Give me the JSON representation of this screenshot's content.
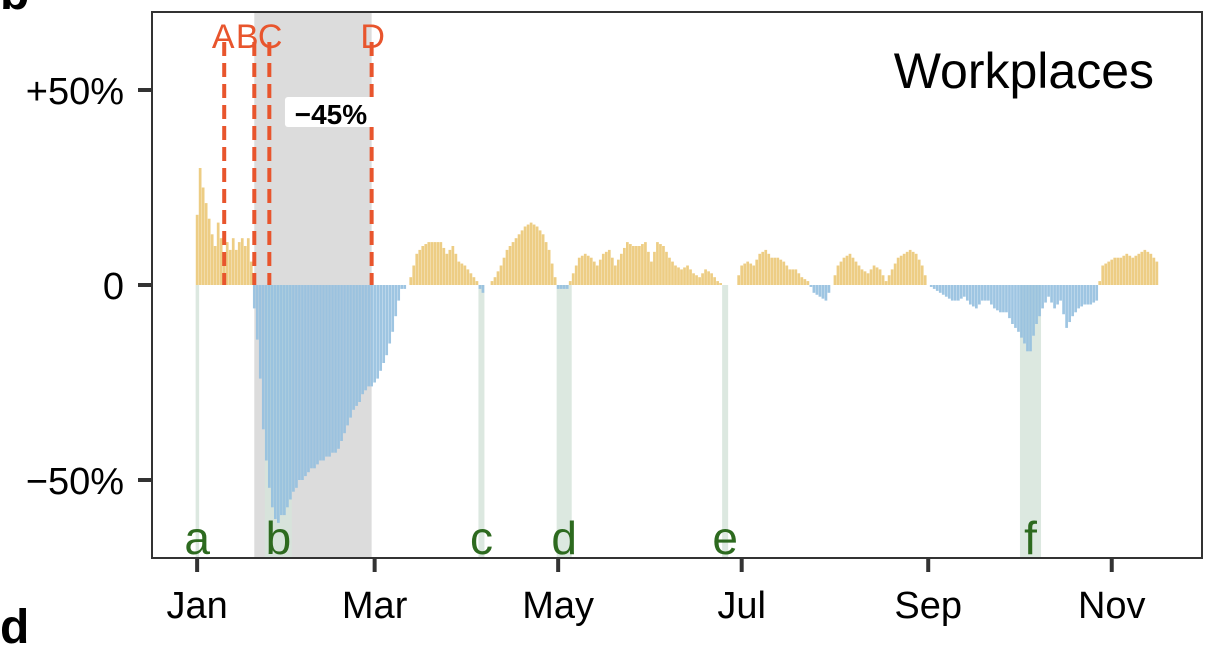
{
  "panel_labels": {
    "top": "b",
    "bottom": "d"
  },
  "chart_data": {
    "type": "bar",
    "title": "Workplaces",
    "xlabel": "",
    "ylabel": "",
    "x_tick_labels": [
      "Jan",
      "Mar",
      "May",
      "Jul",
      "Sep",
      "Nov"
    ],
    "x_tick_days": [
      1,
      60,
      121,
      182,
      244,
      305
    ],
    "y_tick_labels": [
      "+50%",
      "0",
      "−50%"
    ],
    "y_tick_values": [
      50,
      0,
      -50
    ],
    "xlim_days": [
      -14,
      335
    ],
    "ylim": [
      -70,
      70
    ],
    "grid": false,
    "colors": {
      "positive": "#ebc877",
      "negative": "#93bfdf",
      "marker": "#e8552d",
      "holiday": "#2d6a1f",
      "holiday_band": "#d6e4da",
      "lockdown_band": "#dcdcdc"
    },
    "shaded_period": {
      "start_day": 20,
      "end_day": 59,
      "label": "−45%"
    },
    "markers": [
      {
        "label": "A",
        "day": 10
      },
      {
        "label": "B",
        "day": 20
      },
      {
        "label": "C",
        "day": 25
      },
      {
        "label": "D",
        "day": 59
      }
    ],
    "holidays": [
      {
        "label": "a",
        "start_day": 1,
        "end_day": 1
      },
      {
        "label": "b",
        "start_day": 24,
        "end_day": 32
      },
      {
        "label": "c",
        "start_day": 95,
        "end_day": 96
      },
      {
        "label": "d",
        "start_day": 121,
        "end_day": 125
      },
      {
        "label": "e",
        "start_day": 176,
        "end_day": 177
      },
      {
        "label": "f",
        "start_day": 275,
        "end_day": 281
      }
    ],
    "series_anchors": [
      [
        1,
        18
      ],
      [
        2,
        30
      ],
      [
        3,
        25
      ],
      [
        4,
        21
      ],
      [
        5,
        17
      ],
      [
        6,
        13
      ],
      [
        7,
        10
      ],
      [
        8,
        16
      ],
      [
        9,
        12
      ],
      [
        10,
        7
      ],
      [
        11,
        11
      ],
      [
        12,
        9
      ],
      [
        13,
        12
      ],
      [
        14,
        9
      ],
      [
        15,
        11
      ],
      [
        16,
        12
      ],
      [
        17,
        10
      ],
      [
        18,
        12
      ],
      [
        19,
        6
      ],
      [
        20,
        -6
      ],
      [
        21,
        -14
      ],
      [
        22,
        -24
      ],
      [
        23,
        -37
      ],
      [
        24,
        -45
      ],
      [
        25,
        -52
      ],
      [
        26,
        -57
      ],
      [
        27,
        -60
      ],
      [
        28,
        -61
      ],
      [
        29,
        -59
      ],
      [
        30,
        -59
      ],
      [
        31,
        -57
      ],
      [
        32,
        -55
      ],
      [
        33,
        -53
      ],
      [
        34,
        -52
      ],
      [
        35,
        -50
      ],
      [
        36,
        -50
      ],
      [
        37,
        -49
      ],
      [
        38,
        -48
      ],
      [
        39,
        -47
      ],
      [
        40,
        -47
      ],
      [
        41,
        -46
      ],
      [
        42,
        -45
      ],
      [
        43,
        -45
      ],
      [
        44,
        -44
      ],
      [
        45,
        -44
      ],
      [
        46,
        -43
      ],
      [
        47,
        -43
      ],
      [
        48,
        -42
      ],
      [
        49,
        -40
      ],
      [
        50,
        -38
      ],
      [
        51,
        -36
      ],
      [
        52,
        -34
      ],
      [
        53,
        -32
      ],
      [
        54,
        -31
      ],
      [
        55,
        -30
      ],
      [
        56,
        -28
      ],
      [
        57,
        -27
      ],
      [
        58,
        -26
      ],
      [
        59,
        -26
      ],
      [
        60,
        -25
      ],
      [
        61,
        -24
      ],
      [
        62,
        -22
      ],
      [
        63,
        -20
      ],
      [
        64,
        -18
      ],
      [
        65,
        -15
      ],
      [
        66,
        -12
      ],
      [
        67,
        -8
      ],
      [
        68,
        -4
      ],
      [
        69,
        -1
      ],
      [
        70,
        -1
      ],
      [
        71,
        0
      ],
      [
        72,
        2
      ],
      [
        74,
        8
      ],
      [
        76,
        10
      ],
      [
        78,
        11
      ],
      [
        80,
        11
      ],
      [
        82,
        11
      ],
      [
        84,
        8
      ],
      [
        86,
        10
      ],
      [
        88,
        6
      ],
      [
        90,
        5
      ],
      [
        92,
        3
      ],
      [
        94,
        1
      ],
      [
        95,
        -1
      ],
      [
        96,
        -2
      ],
      [
        97,
        0
      ],
      [
        98,
        0
      ],
      [
        100,
        2
      ],
      [
        102,
        5
      ],
      [
        104,
        9
      ],
      [
        106,
        11
      ],
      [
        108,
        13
      ],
      [
        110,
        15
      ],
      [
        112,
        16
      ],
      [
        114,
        15
      ],
      [
        116,
        13
      ],
      [
        118,
        9
      ],
      [
        120,
        2
      ],
      [
        121,
        -1
      ],
      [
        122,
        -1
      ],
      [
        124,
        -1
      ],
      [
        126,
        3
      ],
      [
        128,
        7
      ],
      [
        130,
        8
      ],
      [
        132,
        7
      ],
      [
        134,
        5
      ],
      [
        136,
        8
      ],
      [
        138,
        9
      ],
      [
        140,
        5
      ],
      [
        142,
        8
      ],
      [
        144,
        11
      ],
      [
        146,
        10
      ],
      [
        148,
        10
      ],
      [
        150,
        11
      ],
      [
        152,
        6
      ],
      [
        154,
        11
      ],
      [
        156,
        10
      ],
      [
        158,
        7
      ],
      [
        160,
        5
      ],
      [
        162,
        4
      ],
      [
        164,
        5
      ],
      [
        166,
        3
      ],
      [
        168,
        2
      ],
      [
        170,
        4
      ],
      [
        172,
        3
      ],
      [
        174,
        1
      ],
      [
        176,
        0
      ],
      [
        178,
        0
      ],
      [
        180,
        0
      ],
      [
        182,
        5
      ],
      [
        184,
        6
      ],
      [
        186,
        5
      ],
      [
        188,
        8
      ],
      [
        190,
        9
      ],
      [
        192,
        7
      ],
      [
        194,
        7
      ],
      [
        196,
        6
      ],
      [
        198,
        4
      ],
      [
        200,
        4
      ],
      [
        202,
        2
      ],
      [
        204,
        1
      ],
      [
        206,
        -2
      ],
      [
        208,
        -3
      ],
      [
        210,
        -4
      ],
      [
        212,
        0
      ],
      [
        214,
        5
      ],
      [
        216,
        7
      ],
      [
        218,
        8
      ],
      [
        220,
        6
      ],
      [
        222,
        4
      ],
      [
        224,
        3
      ],
      [
        226,
        5
      ],
      [
        228,
        4
      ],
      [
        230,
        1
      ],
      [
        232,
        4
      ],
      [
        234,
        7
      ],
      [
        236,
        8
      ],
      [
        238,
        9
      ],
      [
        240,
        8
      ],
      [
        242,
        5
      ],
      [
        244,
        0
      ],
      [
        246,
        -1
      ],
      [
        248,
        -2
      ],
      [
        250,
        -3
      ],
      [
        252,
        -4
      ],
      [
        254,
        -4
      ],
      [
        256,
        -3
      ],
      [
        258,
        -5
      ],
      [
        260,
        -6
      ],
      [
        262,
        -4
      ],
      [
        264,
        -4
      ],
      [
        266,
        -6
      ],
      [
        268,
        -7
      ],
      [
        270,
        -7
      ],
      [
        272,
        -10
      ],
      [
        274,
        -12
      ],
      [
        276,
        -15
      ],
      [
        277,
        -17
      ],
      [
        278,
        -17
      ],
      [
        279,
        -13
      ],
      [
        280,
        -10
      ],
      [
        282,
        -6
      ],
      [
        284,
        -3
      ],
      [
        286,
        -6
      ],
      [
        288,
        -4
      ],
      [
        290,
        -11
      ],
      [
        292,
        -8
      ],
      [
        294,
        -6
      ],
      [
        296,
        -5
      ],
      [
        298,
        -5
      ],
      [
        300,
        -4
      ],
      [
        301,
        1
      ],
      [
        302,
        5
      ],
      [
        304,
        6
      ],
      [
        306,
        7
      ],
      [
        308,
        7
      ],
      [
        310,
        8
      ],
      [
        312,
        7
      ],
      [
        314,
        8
      ],
      [
        316,
        9
      ],
      [
        318,
        8
      ],
      [
        320,
        6
      ]
    ]
  }
}
